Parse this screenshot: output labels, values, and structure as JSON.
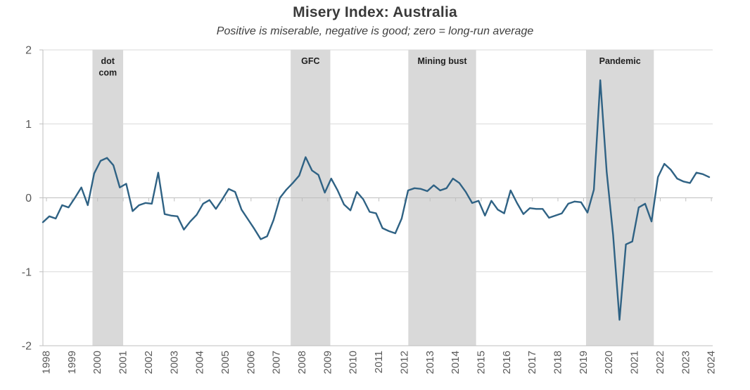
{
  "chart_data": {
    "type": "line",
    "title": "Misery Index: Australia",
    "subtitle": "Positive is miserable, negative is good; zero = long-run average",
    "grid": "horizontal",
    "legend_position": "none",
    "ylim": [
      -2,
      2
    ],
    "y_ticks": [
      "2",
      "1",
      "0",
      "-1",
      "-2"
    ],
    "x_ticks": [
      "1998",
      "1999",
      "2000",
      "2001",
      "2002",
      "2003",
      "2004",
      "2005",
      "2006",
      "2007",
      "2008",
      "2009",
      "2010",
      "2011",
      "2012",
      "2013",
      "2014",
      "2015",
      "2016",
      "2017",
      "2018",
      "2019",
      "2020",
      "2021",
      "2022",
      "2023",
      "2024"
    ],
    "series": [
      {
        "name": "misery-index",
        "start": "1998Q1",
        "frequency": "quarterly",
        "values": [
          -0.33,
          -0.25,
          -0.28,
          -0.1,
          -0.13,
          0.0,
          0.14,
          -0.1,
          0.33,
          0.5,
          0.54,
          0.44,
          0.14,
          0.19,
          -0.18,
          -0.1,
          -0.07,
          -0.08,
          0.34,
          -0.22,
          -0.24,
          -0.25,
          -0.43,
          -0.32,
          -0.23,
          -0.08,
          -0.03,
          -0.15,
          -0.02,
          0.12,
          0.08,
          -0.16,
          -0.29,
          -0.42,
          -0.56,
          -0.52,
          -0.3,
          0.0,
          0.11,
          0.2,
          0.3,
          0.55,
          0.37,
          0.31,
          0.07,
          0.26,
          0.1,
          -0.09,
          -0.17,
          0.08,
          -0.02,
          -0.19,
          -0.21,
          -0.41,
          -0.45,
          -0.48,
          -0.28,
          0.1,
          0.13,
          0.12,
          0.09,
          0.17,
          0.1,
          0.13,
          0.26,
          0.2,
          0.08,
          -0.07,
          -0.04,
          -0.24,
          -0.04,
          -0.16,
          -0.21,
          0.1,
          -0.07,
          -0.22,
          -0.14,
          -0.15,
          -0.15,
          -0.27,
          -0.24,
          -0.21,
          -0.08,
          -0.05,
          -0.06,
          -0.2,
          0.11,
          1.59,
          0.35,
          -0.5,
          -1.65,
          -0.63,
          -0.59,
          -0.13,
          -0.08,
          -0.32,
          0.28,
          0.46,
          0.38,
          0.26,
          0.22,
          0.2,
          0.34,
          0.32,
          0.28
        ]
      }
    ],
    "bands": [
      {
        "label_lines": [
          "dot",
          "com"
        ],
        "from_year": 1999.8,
        "to_year": 2001.0
      },
      {
        "label_lines": [
          "GFC"
        ],
        "from_year": 2007.55,
        "to_year": 2009.1
      },
      {
        "label_lines": [
          "Mining bust"
        ],
        "from_year": 2012.15,
        "to_year": 2014.8
      },
      {
        "label_lines": [
          "Pandemic"
        ],
        "from_year": 2019.1,
        "to_year": 2021.75
      }
    ],
    "colors": {
      "line": "#2F6284",
      "band_fill": "#D9D9D9",
      "gridline": "#D9D9D9",
      "axis_line": "#BFBFBF",
      "tick_label": "#595959",
      "title": "#3A3A3A",
      "band_label": "#1F1F1F"
    }
  }
}
